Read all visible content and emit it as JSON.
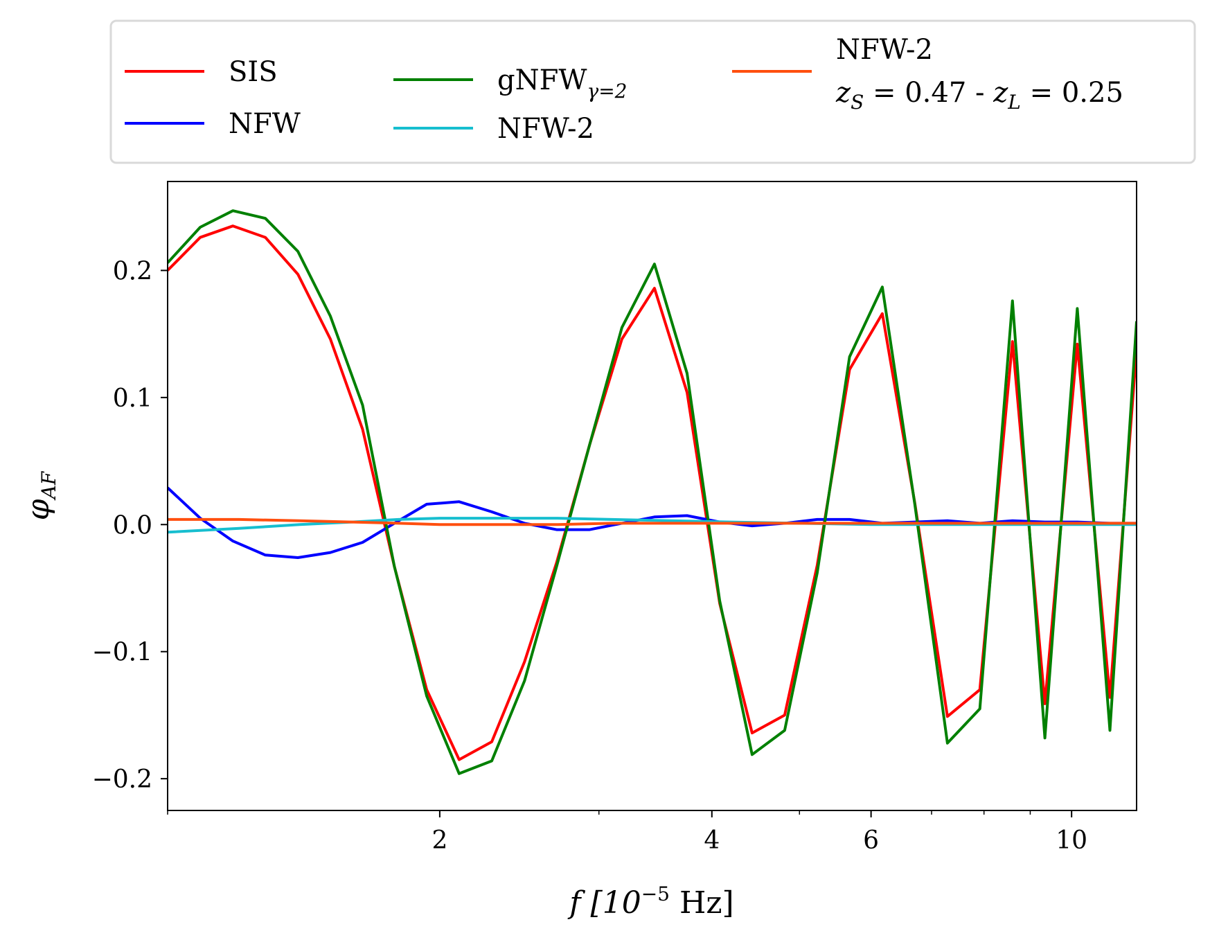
{
  "chart_data": {
    "type": "line",
    "xscale": "log",
    "xlim": [
      1.0,
      11.8
    ],
    "ylim": [
      -0.225,
      0.27
    ],
    "xlabel": "f [10^-5 Hz]",
    "ylabel": "φ_AF",
    "xlabel_parts": {
      "main": "f  [10",
      "sup": "−5",
      "unit": " Hz]"
    },
    "ylabel_parts": {
      "main": "φ",
      "sub": "AF"
    },
    "xticks": [
      {
        "v": 2,
        "label": "2"
      },
      {
        "v": 4,
        "label": "4"
      },
      {
        "v": 6,
        "label": "6"
      },
      {
        "v": 10,
        "label": "10"
      }
    ],
    "xminor": [
      1,
      3,
      5,
      7,
      8,
      9
    ],
    "yticks": [
      {
        "v": 0.2,
        "label": "0.2"
      },
      {
        "v": 0.1,
        "label": "0.1"
      },
      {
        "v": 0.0,
        "label": "0.0"
      },
      {
        "v": -0.1,
        "label": "−0.1"
      },
      {
        "v": -0.2,
        "label": "−0.2"
      }
    ],
    "grid": false,
    "legend": {
      "placement": "top (above plot)",
      "entries": [
        {
          "series": 0,
          "label": "SIS"
        },
        {
          "series": 1,
          "label": "NFW"
        },
        {
          "series": 2,
          "label": "gNFW",
          "sub": "γ=2"
        },
        {
          "series": 3,
          "label": "NFW-2"
        },
        {
          "series": 4,
          "label": "NFW-2",
          "line2": "z_S = 0.47 - z_L = 0.25"
        }
      ],
      "series4_line2_parts": {
        "a": "z",
        "asub": "S",
        "b": " = 0.47 - ",
        "c": "z",
        "csub": "L",
        "d": " = 0.25"
      }
    },
    "series": [
      {
        "name": "SIS",
        "color": "#ff0000",
        "x": [
          1.0,
          1.0866,
          1.1811,
          1.2827,
          1.3935,
          1.5138,
          1.6433,
          1.7816,
          1.9349,
          2.1011,
          2.2835,
          2.482,
          2.6935,
          2.9301,
          3.1807,
          3.456,
          3.7553,
          4.0806,
          4.4318,
          4.8146,
          5.231,
          5.6808,
          6.1742,
          6.7069,
          7.2879,
          7.9159,
          8.6019,
          9.3426,
          10.146,
          11.025,
          11.8
        ],
        "y": [
          0.2,
          0.226,
          0.235,
          0.226,
          0.197,
          0.146,
          0.075,
          -0.033,
          -0.13,
          -0.185,
          -0.171,
          -0.108,
          -0.03,
          0.063,
          0.146,
          0.186,
          0.104,
          -0.062,
          -0.164,
          -0.15,
          -0.032,
          0.122,
          0.166,
          0.017,
          -0.151,
          -0.13,
          0.144,
          -0.141,
          0.142,
          -0.136,
          0.138
        ]
      },
      {
        "name": "NFW",
        "color": "#0000ff",
        "x": [
          1.0,
          1.0866,
          1.1811,
          1.2827,
          1.3935,
          1.5138,
          1.6433,
          1.7816,
          1.9349,
          2.1011,
          2.2835,
          2.482,
          2.6935,
          2.9301,
          3.1807,
          3.456,
          3.7553,
          4.0806,
          4.4318,
          4.8146,
          5.231,
          5.6808,
          6.1742,
          6.7069,
          7.2879,
          7.9159,
          8.6019,
          9.3426,
          10.146,
          11.025,
          11.8
        ],
        "y": [
          0.029,
          0.005,
          -0.013,
          -0.024,
          -0.026,
          -0.022,
          -0.014,
          0.001,
          0.016,
          0.018,
          0.01,
          0.001,
          -0.004,
          -0.004,
          0.001,
          0.006,
          0.007,
          0.002,
          -0.001,
          0.001,
          0.004,
          0.004,
          0.001,
          0.002,
          0.003,
          0.001,
          0.003,
          0.002,
          0.002,
          0.001,
          0.001
        ]
      },
      {
        "name": "gNFW γ=2",
        "color": "#008000",
        "x": [
          1.0,
          1.0866,
          1.1811,
          1.2827,
          1.3935,
          1.5138,
          1.6433,
          1.7816,
          1.9349,
          2.1011,
          2.2835,
          2.482,
          2.6935,
          2.9301,
          3.1807,
          3.456,
          3.7553,
          4.0806,
          4.4318,
          4.8146,
          5.231,
          5.6808,
          6.1742,
          6.7069,
          7.2879,
          7.9159,
          8.6019,
          9.3426,
          10.146,
          11.025,
          11.8
        ],
        "y": [
          0.206,
          0.234,
          0.247,
          0.241,
          0.215,
          0.164,
          0.094,
          -0.033,
          -0.135,
          -0.196,
          -0.186,
          -0.123,
          -0.033,
          0.063,
          0.155,
          0.205,
          0.119,
          -0.06,
          -0.181,
          -0.162,
          -0.038,
          0.132,
          0.187,
          0.016,
          -0.172,
          -0.145,
          0.176,
          -0.168,
          0.17,
          -0.162,
          0.16
        ]
      },
      {
        "name": "NFW-2",
        "color": "#17becf",
        "x": [
          1.0,
          1.2,
          1.4,
          1.6,
          1.8,
          2.0,
          2.3,
          2.7,
          3.1,
          3.6,
          4.2,
          5.0,
          6.0,
          7.5,
          9.0,
          10.5,
          11.8
        ],
        "y": [
          -0.006,
          -0.003,
          0.0,
          0.002,
          0.004,
          0.005,
          0.005,
          0.005,
          0.004,
          0.003,
          0.002,
          0.001,
          0.0,
          0.0,
          0.0,
          0.0,
          0.0
        ]
      },
      {
        "name": "NFW-2",
        "color": "#ff4f0f",
        "x": [
          1.0,
          1.2,
          1.4,
          1.6,
          1.8,
          2.0,
          2.3,
          2.7,
          3.1,
          3.6,
          4.2,
          5.0,
          6.0,
          7.5,
          9.0,
          10.5,
          11.8
        ],
        "y": [
          0.004,
          0.004,
          0.003,
          0.002,
          0.001,
          0.0,
          0.0,
          0.0,
          0.001,
          0.001,
          0.001,
          0.001,
          0.001,
          0.001,
          0.001,
          0.001,
          0.001
        ]
      }
    ]
  }
}
